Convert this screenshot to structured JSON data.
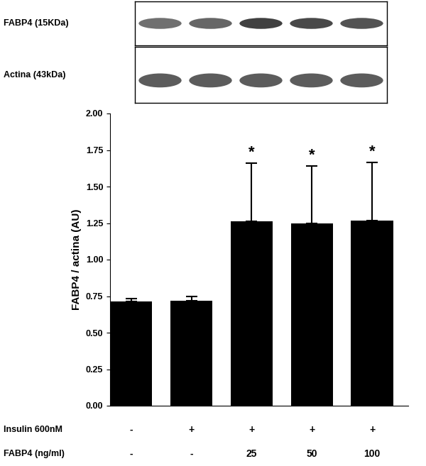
{
  "chart_data": {
    "type": "bar",
    "y_label": "FABP4 / actina (AU)",
    "categories": [
      null,
      null,
      null,
      null,
      null
    ],
    "values": [
      0.715,
      0.72,
      1.26,
      1.25,
      1.265
    ],
    "error_upper": [
      0.02,
      0.03,
      0.4,
      0.39,
      0.4
    ],
    "color": "#000000",
    "significance": [
      null,
      null,
      "*",
      "*",
      "*"
    ],
    "treatment_rows": [
      {
        "label": "Insulin 600nM",
        "values": [
          "-",
          "+",
          "+",
          "+",
          "+"
        ]
      },
      {
        "label": "FABP4 (ng/ml)",
        "values": [
          "-",
          "-",
          "25",
          "50",
          "100"
        ]
      }
    ],
    "blot": {
      "bands": [
        {
          "label": "FABP4 (15KDa)"
        },
        {
          "label": "Actina (43kDa)"
        }
      ]
    },
    "ylim": [
      0,
      2.0
    ],
    "yticks": [
      {
        "value": 0,
        "label": "0.00"
      },
      {
        "value": 0.25,
        "label": "0.25"
      },
      {
        "value": 0.5,
        "label": "0.50"
      },
      {
        "value": 0.75,
        "label": "0.75"
      },
      {
        "value": 1.0,
        "label": "1.00"
      },
      {
        "value": 1.25,
        "label": "1.25"
      },
      {
        "value": 1.5,
        "label": "1.50"
      },
      {
        "value": 1.75,
        "label": "1.75"
      },
      {
        "value": 2.0,
        "label": "2.00"
      }
    ],
    "grid": false
  }
}
